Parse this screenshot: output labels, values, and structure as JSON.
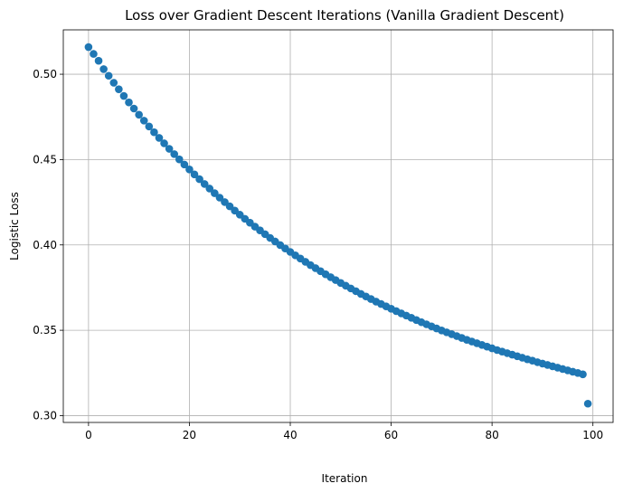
{
  "chart_data": {
    "type": "scatter",
    "title": "Loss over Gradient Descent Iterations (Vanilla Gradient Descent)",
    "xlabel": "Iteration",
    "ylabel": "Logistic Loss",
    "xlim": [
      -5,
      104
    ],
    "ylim": [
      0.296,
      0.526
    ],
    "xticks": [
      0,
      20,
      40,
      60,
      80,
      100
    ],
    "yticks": [
      0.3,
      0.35,
      0.4,
      0.45,
      0.5
    ],
    "xtick_labels": [
      "0",
      "20",
      "40",
      "60",
      "80",
      "100"
    ],
    "ytick_labels": [
      "0.30",
      "0.35",
      "0.40",
      "0.45",
      "0.50"
    ],
    "grid": true,
    "marker": "circle",
    "color": "#1f77b4",
    "series": [
      {
        "x": [
          0,
          1,
          2,
          3,
          4,
          5,
          6,
          7,
          8,
          9,
          10,
          11,
          12,
          13,
          14,
          15,
          16,
          17,
          18,
          19,
          20,
          21,
          22,
          23,
          24,
          25,
          26,
          27,
          28,
          29,
          30,
          31,
          32,
          33,
          34,
          35,
          36,
          37,
          38,
          39,
          40,
          41,
          42,
          43,
          44,
          45,
          46,
          47,
          48,
          49,
          50,
          51,
          52,
          53,
          54,
          55,
          56,
          57,
          58,
          59,
          60,
          61,
          62,
          63,
          64,
          65,
          66,
          67,
          68,
          69,
          70,
          71,
          72,
          73,
          74,
          75,
          76,
          77,
          78,
          79,
          80,
          81,
          82,
          83,
          84,
          85,
          86,
          87,
          88,
          89,
          90,
          91,
          92,
          93,
          94,
          95,
          96,
          97,
          98,
          99
        ],
        "y": [
          0.5159,
          0.5119,
          0.5079,
          0.503,
          0.4991,
          0.495,
          0.4912,
          0.4873,
          0.4835,
          0.4799,
          0.4763,
          0.4728,
          0.4694,
          0.466,
          0.4627,
          0.4595,
          0.4563,
          0.4532,
          0.4501,
          0.4471,
          0.4442,
          0.4413,
          0.4385,
          0.4357,
          0.433,
          0.4303,
          0.4277,
          0.4251,
          0.4226,
          0.4201,
          0.4177,
          0.4153,
          0.413,
          0.4107,
          0.4085,
          0.4063,
          0.4041,
          0.402,
          0.3999,
          0.3979,
          0.3959,
          0.3939,
          0.392,
          0.3901,
          0.3882,
          0.3864,
          0.3846,
          0.3828,
          0.3811,
          0.3794,
          0.3777,
          0.3761,
          0.3745,
          0.3729,
          0.3713,
          0.3698,
          0.3683,
          0.3668,
          0.3654,
          0.364,
          0.3626,
          0.3612,
          0.3599,
          0.3586,
          0.3573,
          0.356,
          0.3547,
          0.3535,
          0.3523,
          0.3511,
          0.3499,
          0.3488,
          0.3477,
          0.3466,
          0.3455,
          0.3444,
          0.3434,
          0.3424,
          0.3414,
          0.3404,
          0.3394,
          0.3384,
          0.3375,
          0.3366,
          0.3357,
          0.3348,
          0.3339,
          0.333,
          0.3322,
          0.3313,
          0.3305,
          0.3297,
          0.3289,
          0.3281,
          0.3273,
          0.3265,
          0.3257,
          0.325,
          0.3242,
          0.307
        ]
      }
    ]
  }
}
